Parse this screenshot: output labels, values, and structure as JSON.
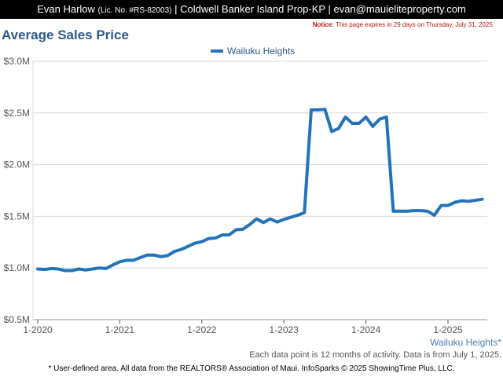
{
  "header": {
    "agent_name": "Evan Harlow",
    "license": "(Lic. No. #RS-82003)",
    "brokerage": "| Coldwell Banker Island Prop-KP |",
    "email": "evan@mauieliteproperty.com"
  },
  "notice": {
    "label": "Notice:",
    "text": "This page expires in 29 days on Thursday, July 31, 2025."
  },
  "footer": {
    "line1": "Each data point is 12 months of activity. Data is from July 1, 2025.",
    "line2": "* User-defined area. All data from the REALTORS® Association of Maui. InfoSparks © 2025 ShowingTime Plus, LLC."
  },
  "chart_data": {
    "type": "line",
    "title": "Average Sales Price",
    "xlabel": "",
    "ylabel": "",
    "ylim": [
      500000,
      3000000
    ],
    "yticks": [
      500000,
      1000000,
      1500000,
      2000000,
      2500000,
      3000000
    ],
    "ytick_labels": [
      "$0.5M",
      "$1.0M",
      "$1.5M",
      "$2.0M",
      "$2.5M",
      "$3.0M"
    ],
    "xticks": [
      "2020-01",
      "2021-01",
      "2022-01",
      "2023-01",
      "2024-01",
      "2025-01"
    ],
    "xtick_labels": [
      "1-2020",
      "1-2021",
      "1-2022",
      "1-2023",
      "1-2024",
      "1-2025"
    ],
    "x_area_label": "Wailuku Heights*",
    "grid": true,
    "legend_position": "top-center",
    "color": "#2373bb",
    "x": [
      "2020-01",
      "2020-02",
      "2020-03",
      "2020-04",
      "2020-05",
      "2020-06",
      "2020-07",
      "2020-08",
      "2020-09",
      "2020-10",
      "2020-11",
      "2020-12",
      "2021-01",
      "2021-02",
      "2021-03",
      "2021-04",
      "2021-05",
      "2021-06",
      "2021-07",
      "2021-08",
      "2021-09",
      "2021-10",
      "2021-11",
      "2021-12",
      "2022-01",
      "2022-02",
      "2022-03",
      "2022-04",
      "2022-05",
      "2022-06",
      "2022-07",
      "2022-08",
      "2022-09",
      "2022-10",
      "2022-11",
      "2022-12",
      "2023-01",
      "2023-02",
      "2023-03",
      "2023-04",
      "2023-05",
      "2023-06",
      "2023-07",
      "2023-08",
      "2023-09",
      "2023-10",
      "2023-11",
      "2023-12",
      "2024-01",
      "2024-02",
      "2024-03",
      "2024-04",
      "2024-05",
      "2024-06",
      "2024-07",
      "2024-08",
      "2024-09",
      "2024-10",
      "2024-11",
      "2024-12",
      "2025-01",
      "2025-02",
      "2025-03",
      "2025-04",
      "2025-05",
      "2025-06"
    ],
    "series": [
      {
        "name": "Wailuku Heights",
        "values": [
          990000,
          985000,
          995000,
          990000,
          975000,
          975000,
          990000,
          980000,
          990000,
          1000000,
          995000,
          1030000,
          1060000,
          1075000,
          1075000,
          1100000,
          1125000,
          1125000,
          1110000,
          1120000,
          1160000,
          1180000,
          1210000,
          1240000,
          1255000,
          1285000,
          1290000,
          1320000,
          1320000,
          1370000,
          1375000,
          1420000,
          1475000,
          1440000,
          1475000,
          1445000,
          1470000,
          1490000,
          1510000,
          1535000,
          2530000,
          2530000,
          2535000,
          2320000,
          2350000,
          2460000,
          2400000,
          2400000,
          2460000,
          2370000,
          2440000,
          2460000,
          1550000,
          1550000,
          1550000,
          1555000,
          1555000,
          1550000,
          1510000,
          1605000,
          1605000,
          1635000,
          1650000,
          1645000,
          1655000,
          1665000
        ]
      }
    ]
  }
}
